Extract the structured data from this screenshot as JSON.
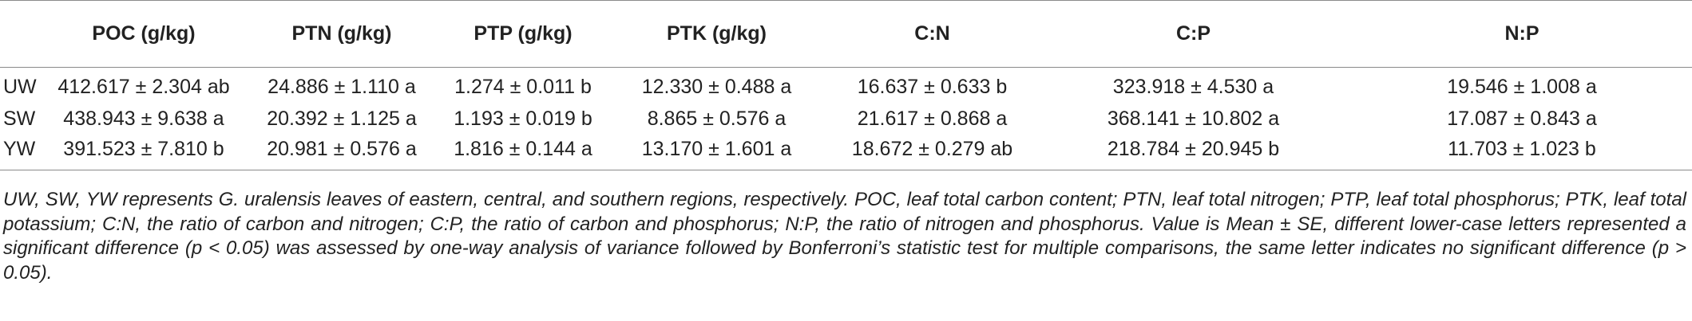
{
  "table": {
    "headers": [
      "",
      "POC (g/kg)",
      "PTN (g/kg)",
      "PTP (g/kg)",
      "PTK (g/kg)",
      "C:N",
      "C:P",
      "N:P"
    ],
    "rows": [
      {
        "label": "UW",
        "cells": [
          "412.617 ± 2.304 ab",
          "24.886 ± 1.110 a",
          "1.274 ± 0.011 b",
          "12.330 ± 0.488 a",
          "16.637 ± 0.633 b",
          "323.918 ± 4.530 a",
          "19.546 ± 1.008 a"
        ]
      },
      {
        "label": "SW",
        "cells": [
          "438.943 ± 9.638 a",
          "20.392 ± 1.125 a",
          "1.193 ± 0.019 b",
          "8.865 ± 0.576 a",
          "21.617 ± 0.868 a",
          "368.141 ± 10.802 a",
          "17.087 ± 0.843 a"
        ]
      },
      {
        "label": "YW",
        "cells": [
          "391.523 ± 7.810 b",
          "20.981 ± 0.576 a",
          "1.816 ± 0.144 a",
          "13.170 ± 1.601 a",
          "18.672 ± 0.279 ab",
          "218.784 ± 20.945 b",
          "11.703 ± 1.023 b"
        ]
      }
    ]
  },
  "footnote": "UW, SW, YW represents G. uralensis leaves of eastern, central, and southern regions, respectively. POC, leaf total carbon content; PTN, leaf total nitrogen; PTP, leaf total phosphorus; PTK, leaf total potassium; C:N, the ratio of carbon and nitrogen; C:P, the ratio of carbon and phosphorus; N:P, the ratio of nitrogen and phosphorus. Value is Mean ± SE, different lower-case letters represented a significant difference (p < 0.05) was assessed by one-way analysis of variance followed by Bonferroni’s statistic test for multiple comparisons, the same letter indicates no significant difference (p > 0.05)."
}
